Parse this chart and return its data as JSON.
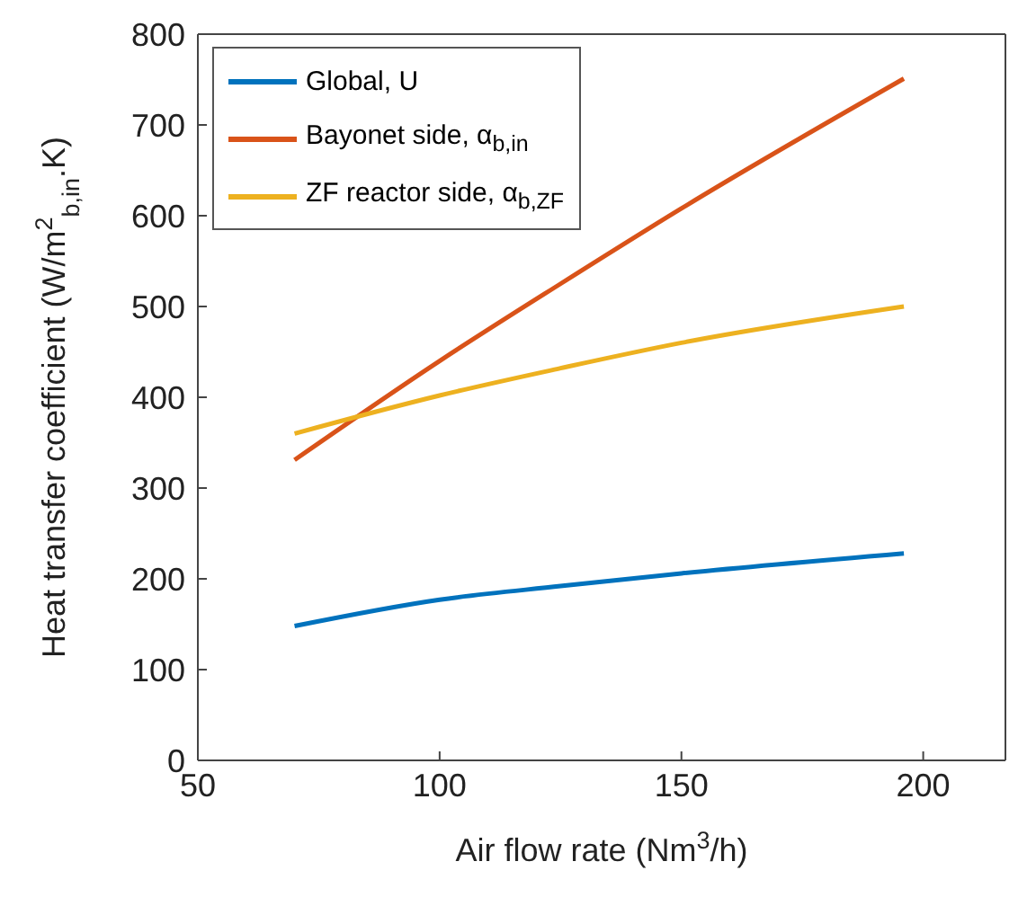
{
  "chart_data": {
    "type": "line",
    "xlabel": "Air flow rate (Nm$^{3}$/h)",
    "ylabel": "Heat transfer coefficient (W/m$^{2}$$_{b,in}$.K)",
    "x": [
      70,
      100,
      125,
      150,
      196
    ],
    "series": [
      {
        "name": "Global, U",
        "color": "#0072bd",
        "values": [
          148,
          177,
          192,
          206,
          228
        ]
      },
      {
        "name": "Bayonet side, α$_{b,in}$",
        "color": "#d95319",
        "values": [
          331,
          440,
          525,
          608,
          751
        ]
      },
      {
        "name": "ZF reactor side, α$_{b,ZF}$",
        "color": "#edb120",
        "values": [
          360,
          402,
          432,
          460,
          500
        ]
      }
    ],
    "xlim": [
      50,
      217
    ],
    "xticks": [
      50,
      100,
      150,
      200
    ],
    "ylim": [
      0,
      800
    ],
    "yticks": [
      0,
      100,
      200,
      300,
      400,
      500,
      600,
      700,
      800
    ],
    "legend": "top left",
    "marker": "none",
    "line_style": "solid"
  }
}
